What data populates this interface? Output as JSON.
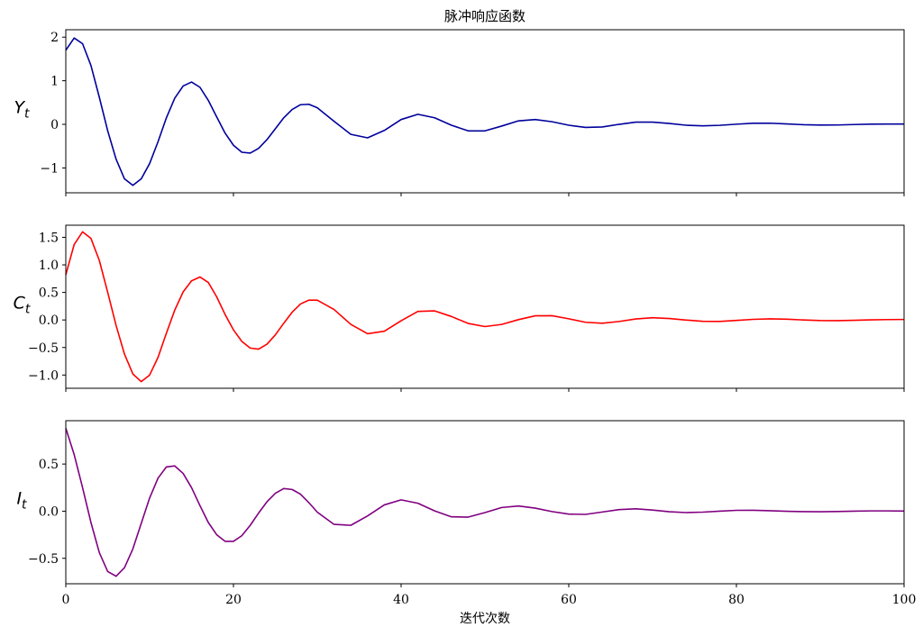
{
  "chart_data": [
    {
      "type": "line",
      "title": "脉冲响应函数",
      "ylabel": "Y",
      "ylabel_sub": "t",
      "x": [
        0,
        1,
        2,
        3,
        4,
        5,
        6,
        7,
        8,
        9,
        10,
        11,
        12,
        13,
        14,
        15,
        16,
        17,
        18,
        19,
        20,
        21,
        22,
        23,
        24,
        25,
        26,
        27,
        28,
        29,
        30,
        32,
        34,
        36,
        38,
        40,
        42,
        44,
        46,
        48,
        50,
        52,
        54,
        56,
        58,
        60,
        62,
        64,
        66,
        68,
        70,
        72,
        74,
        76,
        78,
        80,
        82,
        84,
        86,
        88,
        90,
        92,
        94,
        96,
        98,
        100
      ],
      "series": [
        {
          "color": "#00009c",
          "values": [
            1.7,
            1.98,
            1.85,
            1.35,
            0.62,
            -0.15,
            -0.8,
            -1.25,
            -1.4,
            -1.25,
            -0.9,
            -0.4,
            0.15,
            0.6,
            0.88,
            0.97,
            0.85,
            0.55,
            0.17,
            -0.2,
            -0.48,
            -0.64,
            -0.66,
            -0.55,
            -0.35,
            -0.1,
            0.15,
            0.34,
            0.45,
            0.46,
            0.38,
            0.07,
            -0.23,
            -0.31,
            -0.14,
            0.11,
            0.23,
            0.15,
            -0.02,
            -0.15,
            -0.15,
            -0.04,
            0.08,
            0.11,
            0.06,
            -0.02,
            -0.07,
            -0.06,
            0,
            0.05,
            0.05,
            0.02,
            -0.02,
            -0.035,
            -0.023,
            0.003,
            0.024,
            0.026,
            0.01,
            -0.009,
            -0.017,
            -0.015,
            -0.005,
            0.004,
            0.007,
            0.006
          ]
        }
      ],
      "xlim": [
        0,
        100
      ],
      "ylim": [
        -1.57,
        2.17
      ],
      "yticks": [
        {
          "value": -1,
          "label": "−1"
        },
        0,
        1,
        2
      ]
    },
    {
      "type": "line",
      "ylabel": "C",
      "ylabel_sub": "t",
      "x": [
        0,
        1,
        2,
        3,
        4,
        5,
        6,
        7,
        8,
        9,
        10,
        11,
        12,
        13,
        14,
        15,
        16,
        17,
        18,
        19,
        20,
        21,
        22,
        23,
        24,
        25,
        26,
        27,
        28,
        29,
        30,
        32,
        34,
        36,
        38,
        40,
        42,
        44,
        46,
        48,
        50,
        52,
        54,
        56,
        58,
        60,
        62,
        64,
        66,
        68,
        70,
        72,
        74,
        76,
        78,
        80,
        82,
        84,
        86,
        88,
        90,
        92,
        94,
        96,
        98,
        100
      ],
      "series": [
        {
          "color": "#ff0000",
          "values": [
            0.82,
            1.37,
            1.6,
            1.48,
            1.08,
            0.5,
            -0.1,
            -0.62,
            -0.98,
            -1.12,
            -1.0,
            -0.68,
            -0.24,
            0.18,
            0.51,
            0.71,
            0.78,
            0.68,
            0.42,
            0.1,
            -0.18,
            -0.39,
            -0.51,
            -0.53,
            -0.44,
            -0.27,
            -0.06,
            0.14,
            0.29,
            0.36,
            0.36,
            0.19,
            -0.08,
            -0.25,
            -0.205,
            -0.014,
            0.156,
            0.165,
            0.063,
            -0.063,
            -0.12,
            -0.081,
            0.006,
            0.075,
            0.077,
            0.021,
            -0.042,
            -0.059,
            -0.028,
            0.018,
            0.04,
            0.027,
            -0.002,
            -0.025,
            -0.026,
            -0.009,
            0.011,
            0.02,
            0.014,
            0,
            -0.011,
            -0.012,
            -0.006,
            0.002,
            0.007,
            0.009
          ]
        }
      ],
      "xlim": [
        0,
        100
      ],
      "ylim": [
        -1.24,
        1.72
      ],
      "yticks": [
        {
          "value": -1,
          "label": "−1.0"
        },
        {
          "value": -0.5,
          "label": "−0.5"
        },
        {
          "value": 0,
          "label": "0.0"
        },
        0.5,
        {
          "value": 1,
          "label": "1.0"
        },
        1.5
      ]
    },
    {
      "type": "line",
      "ylabel": "I",
      "ylabel_sub": "t",
      "xlabel": "迭代次数",
      "x": [
        0,
        1,
        2,
        3,
        4,
        5,
        6,
        7,
        8,
        9,
        10,
        11,
        12,
        13,
        14,
        15,
        16,
        17,
        18,
        19,
        20,
        21,
        22,
        23,
        24,
        25,
        26,
        27,
        28,
        29,
        30,
        32,
        34,
        36,
        38,
        40,
        42,
        44,
        46,
        48,
        50,
        52,
        54,
        56,
        58,
        60,
        62,
        64,
        66,
        68,
        70,
        72,
        74,
        76,
        78,
        80,
        82,
        84,
        86,
        88,
        90,
        92,
        94,
        96,
        98,
        100
      ],
      "series": [
        {
          "color": "#800080",
          "values": [
            0.88,
            0.6,
            0.25,
            -0.12,
            -0.44,
            -0.64,
            -0.69,
            -0.6,
            -0.4,
            -0.13,
            0.14,
            0.35,
            0.47,
            0.48,
            0.4,
            0.25,
            0.06,
            -0.12,
            -0.25,
            -0.32,
            -0.32,
            -0.26,
            -0.15,
            -0.02,
            0.1,
            0.19,
            0.24,
            0.23,
            0.18,
            0.09,
            -0.01,
            -0.14,
            -0.15,
            -0.05,
            0.067,
            0.12,
            0.084,
            0.003,
            -0.06,
            -0.063,
            -0.015,
            0.039,
            0.055,
            0.032,
            -0.004,
            -0.031,
            -0.034,
            -0.009,
            0.017,
            0.025,
            0.012,
            -0.006,
            -0.015,
            -0.01,
            0,
            0.009,
            0.01,
            0.005,
            -0.001,
            -0.005,
            -0.006,
            -0.004,
            0,
            0.003,
            0.003,
            0.001
          ]
        }
      ],
      "xlim": [
        0,
        100
      ],
      "ylim": [
        -0.77,
        0.96
      ],
      "yticks": [
        {
          "value": -0.5,
          "label": "−0.5"
        },
        {
          "value": 0,
          "label": "0.0"
        },
        0.5
      ],
      "xticks": [
        0,
        20,
        40,
        60,
        80,
        100
      ]
    }
  ]
}
